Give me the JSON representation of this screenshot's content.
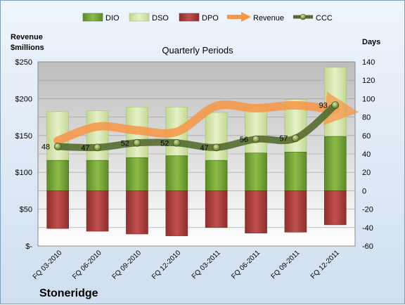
{
  "company": "Stoneridge",
  "chart_data": {
    "type": "bar",
    "title": "Quarterly Periods",
    "ylabel_left": "Revenue\n$millions",
    "ylabel_right": "Days",
    "categories": [
      "FQ 03-2010",
      "FQ 06-2010",
      "FQ 09-2010",
      "FQ 12-2010",
      "FQ 03-2011",
      "FQ 06-2011",
      "FQ 09-2011",
      "FQ 12-2011"
    ],
    "left_axis": {
      "min": 0,
      "max": 250,
      "step": 50,
      "tick_labels": [
        "$-",
        "$50",
        "$100",
        "$150",
        "$200",
        "$250"
      ]
    },
    "right_axis": {
      "min": -60,
      "max": 140,
      "step": 20,
      "tick_labels": [
        "-60",
        "-40",
        "-20",
        "0",
        "20",
        "40",
        "60",
        "80",
        "100",
        "120",
        "140"
      ]
    },
    "legend": [
      "DIO",
      "DSO",
      "DPO",
      "Revenue",
      "CCC"
    ],
    "legend_position": "top",
    "series": [
      {
        "name": "DIO",
        "axis": "right",
        "color": "#77a33a",
        "values": [
          33,
          33,
          36,
          38,
          33,
          41,
          42,
          59
        ]
      },
      {
        "name": "DSO",
        "axis": "right",
        "color": "#d4e6a8",
        "values": [
          53,
          54,
          55,
          53,
          52,
          51,
          57,
          75
        ]
      },
      {
        "name": "DPO",
        "axis": "right",
        "color": "#c0504d",
        "values": [
          -41,
          -44,
          -47,
          -49,
          -40,
          -46,
          -45,
          -37
        ]
      },
      {
        "name": "Revenue",
        "axis": "left",
        "color": "#f79646",
        "values": [
          143,
          162,
          157,
          155,
          190,
          187,
          191,
          185
        ]
      },
      {
        "name": "CCC",
        "axis": "right",
        "color": "#556b2f",
        "values": [
          48,
          47,
          52,
          52,
          47,
          56,
          57,
          93
        ],
        "labels": [
          "48",
          "47",
          "52",
          "52",
          "47",
          "56",
          "57",
          "93"
        ]
      }
    ]
  }
}
